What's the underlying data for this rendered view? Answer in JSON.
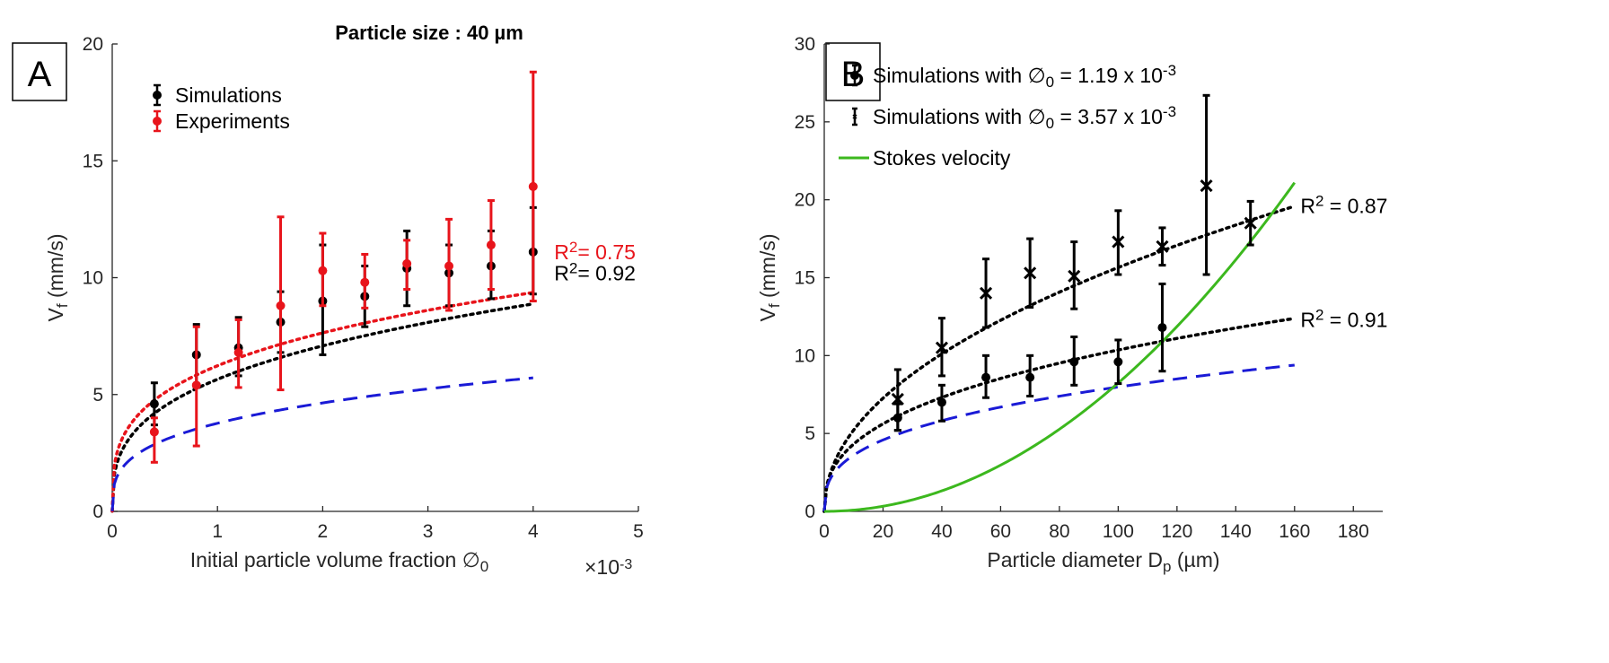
{
  "chart_data": [
    {
      "panel": "A",
      "type": "scatter",
      "title": "Particle size : 40 µm",
      "xlabel": "Initial particle volume fraction ∅",
      "xlabel_sub": "0",
      "ylabel": "V",
      "ylabel_sub": "f",
      "ylabel_unit": " (mm/s)",
      "x_multiplier": "×10",
      "x_multiplier_exp": "-3",
      "xlim": [
        0,
        5
      ],
      "ylim": [
        0,
        20
      ],
      "xticks": [
        "0",
        "1",
        "2",
        "3",
        "4",
        "5"
      ],
      "yticks": [
        "0",
        "5",
        "10",
        "15",
        "20"
      ],
      "legend_position": "top-left",
      "series": [
        {
          "name": "Simulations",
          "color": "#000000",
          "marker": "dot",
          "x": [
            0.4,
            0.8,
            1.2,
            1.6,
            2.0,
            2.4,
            2.8,
            3.2,
            3.6,
            4.0
          ],
          "y": [
            4.6,
            6.7,
            7.0,
            8.1,
            9.0,
            9.2,
            10.4,
            10.2,
            10.5,
            11.1
          ],
          "err_low": [
            3.7,
            5.3,
            5.8,
            6.8,
            6.7,
            7.9,
            8.8,
            8.8,
            9.1,
            9.3
          ],
          "err_high": [
            5.5,
            8.0,
            8.3,
            9.4,
            11.4,
            10.5,
            12.0,
            11.4,
            12.0,
            13.0
          ]
        },
        {
          "name": "Experiments",
          "color": "#e8141b",
          "marker": "dot",
          "x": [
            0.4,
            0.8,
            1.2,
            1.6,
            2.0,
            2.4,
            2.8,
            3.2,
            3.6,
            4.0
          ],
          "y": [
            3.4,
            5.4,
            6.8,
            8.8,
            10.3,
            9.8,
            10.6,
            10.5,
            11.4,
            13.9
          ],
          "err_low": [
            2.1,
            2.8,
            5.3,
            5.2,
            8.8,
            8.7,
            9.5,
            8.6,
            9.5,
            9.0
          ],
          "err_high": [
            4.0,
            7.9,
            8.2,
            12.6,
            11.9,
            11.0,
            11.6,
            12.5,
            13.3,
            18.8
          ]
        }
      ],
      "fits": [
        {
          "name": "Simulations fit",
          "color": "#000000",
          "style": "dotted",
          "a": 5.65,
          "b": 0.326,
          "xmax": 4.0
        },
        {
          "name": "Experiments fit",
          "color": "#e8141b",
          "style": "dotted",
          "a": 6.23,
          "b": 0.294,
          "xmax": 4.0
        },
        {
          "name": "Model",
          "color": "#1a1ad6",
          "style": "dashed",
          "a": 3.77,
          "b": 0.3,
          "xmax": 4.0
        }
      ],
      "annotations": [
        {
          "text": "R",
          "sup": "2",
          "rest": "= 0.75",
          "color": "#e8141b",
          "x": 4.2,
          "y": 11.1
        },
        {
          "text": "R",
          "sup": "2",
          "rest": "= 0.92",
          "color": "#000000",
          "x": 4.2,
          "y": 10.2
        }
      ],
      "panel_label": "A"
    },
    {
      "panel": "B",
      "type": "scatter",
      "xlabel": "Particle diameter D",
      "xlabel_sub": "p",
      "xlabel_unit": " (µm)",
      "ylabel": "V",
      "ylabel_sub": "f",
      "ylabel_unit": " (mm/s)",
      "xlim": [
        0,
        190
      ],
      "ylim": [
        0,
        30
      ],
      "xticks": [
        "0",
        "20",
        "40",
        "60",
        "80",
        "100",
        "120",
        "140",
        "160",
        "180"
      ],
      "yticks": [
        "0",
        "5",
        "10",
        "15",
        "20",
        "25",
        "30"
      ],
      "legend_position": "top-left",
      "legend": [
        {
          "label": "Simulations with ∅",
          "sub": "0",
          "rest": " = 1.19 x 10",
          "sup": "-3",
          "marker": "dot"
        },
        {
          "label": "Simulations with ∅",
          "sub": "0",
          "rest": " = 3.57 x 10",
          "sup": "-3",
          "marker": "small"
        },
        {
          "label": "Stokes velocity",
          "marker": "line",
          "color": "#3cb81e"
        }
      ],
      "series": [
        {
          "name": "Simulations with ∅0 = 1.19 x 10-3",
          "color": "#000000",
          "marker": "dot",
          "x": [
            25,
            40,
            55,
            70,
            85,
            100,
            115
          ],
          "y": [
            6.0,
            7.0,
            8.6,
            8.6,
            9.6,
            9.6,
            11.8
          ],
          "err_low": [
            5.2,
            5.8,
            7.3,
            7.4,
            8.1,
            8.2,
            9.0
          ],
          "err_high": [
            6.9,
            8.1,
            10.0,
            10.0,
            11.2,
            11.0,
            14.6
          ]
        },
        {
          "name": "Simulations with ∅0 = 3.57 x 10-3",
          "color": "#000000",
          "marker": "x",
          "x": [
            25,
            40,
            55,
            70,
            85,
            100,
            115,
            130,
            145
          ],
          "y": [
            7.2,
            10.5,
            14.0,
            15.3,
            15.1,
            17.3,
            17.0,
            20.9,
            18.5
          ],
          "err_low": [
            5.2,
            8.7,
            11.8,
            13.1,
            13.0,
            15.2,
            15.8,
            15.2,
            17.1
          ],
          "err_high": [
            9.1,
            12.4,
            16.2,
            17.5,
            17.3,
            19.3,
            18.2,
            26.7,
            19.9
          ]
        }
      ],
      "fits": [
        {
          "name": "Fit 3.57",
          "color": "#000000",
          "style": "dotted",
          "a": 1.74,
          "b": 0.477,
          "xmax": 160
        },
        {
          "name": "Fit 1.19",
          "color": "#000000",
          "style": "dotted",
          "a": 1.8,
          "b": 0.38,
          "xmax": 160
        },
        {
          "name": "Model",
          "color": "#1a1ad6",
          "style": "dashed",
          "a": 1.63,
          "b": 0.345,
          "xmax": 160
        },
        {
          "name": "Stokes velocity",
          "color": "#3cb81e",
          "style": "solid",
          "stokes_k": 0.000824,
          "xmax": 160
        }
      ],
      "annotations": [
        {
          "text": "R",
          "sup": "2",
          "rest": " = 0.87",
          "color": "#000000",
          "x": 162,
          "y": 19.6
        },
        {
          "text": "R",
          "sup": "2",
          "rest": " = 0.91",
          "color": "#000000",
          "x": 162,
          "y": 12.3
        }
      ],
      "panel_label": "B"
    }
  ]
}
